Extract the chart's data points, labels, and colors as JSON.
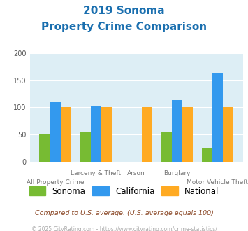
{
  "title_line1": "2019 Sonoma",
  "title_line2": "Property Crime Comparison",
  "title_color": "#1a6faf",
  "categories": [
    "All Property Crime",
    "Larceny & Theft",
    "Arson",
    "Burglary",
    "Motor Vehicle Theft"
  ],
  "sonoma_values": [
    52,
    55,
    0,
    55,
    26
  ],
  "california_values": [
    110,
    103,
    0,
    113,
    163
  ],
  "national_values": [
    100,
    100,
    100,
    100,
    100
  ],
  "sonoma_color": "#77bb33",
  "california_color": "#3399ee",
  "national_color": "#ffaa22",
  "ylim": [
    0,
    200
  ],
  "yticks": [
    0,
    50,
    100,
    150,
    200
  ],
  "bg_color": "#ddeef5",
  "legend_labels": [
    "Sonoma",
    "California",
    "National"
  ],
  "footnote1": "Compared to U.S. average. (U.S. average equals 100)",
  "footnote2": "© 2025 CityRating.com - https://www.cityrating.com/crime-statistics/",
  "footnote1_color": "#884422",
  "footnote2_color": "#aaaaaa",
  "top_labels": [
    "",
    "Larceny & Theft",
    "Arson",
    "Burglary",
    ""
  ],
  "bot_labels": [
    "All Property Crime",
    "",
    "",
    "",
    "Motor Vehicle Theft"
  ]
}
